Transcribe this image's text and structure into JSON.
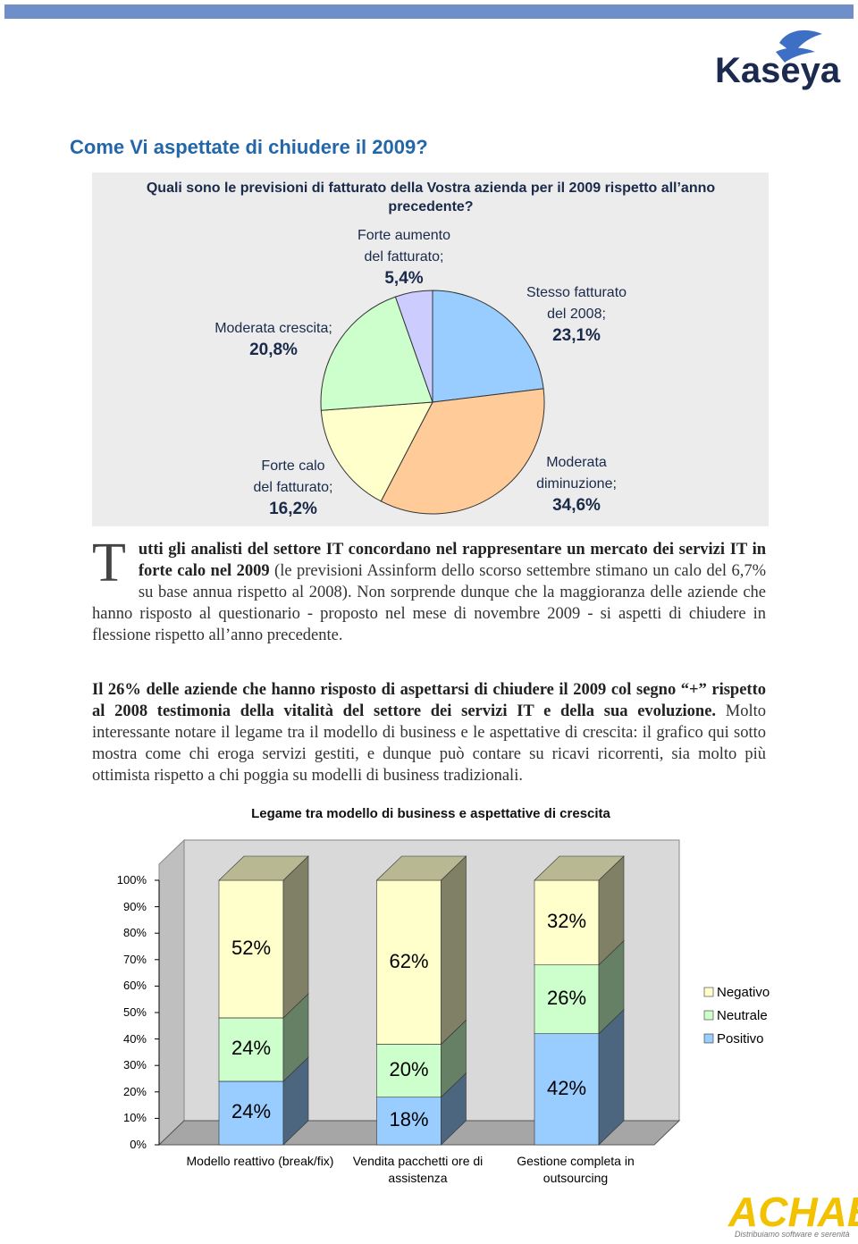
{
  "header": {
    "logo": "Kaseya"
  },
  "heading": "Come Vi aspettate di chiudere il 2009?",
  "chart_data": [
    {
      "type": "pie",
      "title": "Quali sono le previsioni di fatturato della Vostra azienda per il 2009 rispetto all’anno precedente?",
      "categories": [
        "Stesso fatturato del 2008;",
        "Moderata diminuzione;",
        "Forte calo del fatturato;",
        "Moderata crescita;",
        "Forte aumento del fatturato;"
      ],
      "values": [
        23.1,
        34.6,
        16.2,
        20.8,
        5.4
      ],
      "value_labels": [
        "23,1%",
        "34,6%",
        "16,2%",
        "20,8%",
        "5,4%"
      ],
      "colors": [
        "#99ccff",
        "#ffcc99",
        "#ffffcc",
        "#ccffcc",
        "#ccccff"
      ]
    },
    {
      "type": "bar",
      "stacked": true,
      "title": "Legame tra modello di business e aspettative di crescita",
      "categories": [
        "Modello reattivo (break/fix)",
        "Vendita pacchetti ore di assistenza",
        "Gestione completa in outsourcing"
      ],
      "series": [
        {
          "name": "Positivo",
          "color": "#99ccff",
          "values": [
            24,
            18,
            42
          ],
          "value_labels": [
            "24%",
            "18%",
            "42%"
          ]
        },
        {
          "name": "Neutrale",
          "color": "#ccffcc",
          "values": [
            24,
            20,
            26
          ],
          "value_labels": [
            "24%",
            "20%",
            "26%"
          ]
        },
        {
          "name": "Negativo",
          "color": "#ffffcc",
          "values": [
            52,
            62,
            32
          ],
          "value_labels": [
            "52%",
            "62%",
            "32%"
          ]
        }
      ],
      "ylim": [
        0,
        100
      ],
      "yticks": [
        {
          "value": 0,
          "label": "0%"
        },
        {
          "value": 10,
          "label": "10%"
        },
        {
          "value": 20,
          "label": "20%"
        },
        {
          "value": 30,
          "label": "30%"
        },
        {
          "value": 40,
          "label": "40%"
        },
        {
          "value": 50,
          "label": "50%"
        },
        {
          "value": 60,
          "label": "60%"
        },
        {
          "value": 70,
          "label": "70%"
        },
        {
          "value": 80,
          "label": "80%"
        },
        {
          "value": 90,
          "label": "90%"
        },
        {
          "value": 100,
          "label": "100%"
        }
      ],
      "legend": "right"
    }
  ],
  "paragraphs": [
    {
      "drop_cap": "T",
      "bold": "utti gli analisti del settore IT concordano nel rappresentare un mercato dei servizi IT in forte calo nel 2009",
      "text": "(le previsioni Assinform dello scorso settembre stimano un calo del 6,7% su base annua rispetto al 2008). Non sorprende dunque che la maggioranza delle aziende che hanno risposto al questionario - proposto nel mese di novembre 2009 - si aspetti di chiudere in flessione rispetto all’anno precedente."
    },
    {
      "bold": "Il 26% delle aziende che hanno risposto di aspettarsi di chiudere il 2009 col segno “+” rispetto al 2008 testimonia della vitalità del settore dei servizi IT e della sua evoluzione.",
      "text": "Molto interessante notare il legame tra il modello di business e le aspettative di crescita: il grafico qui sotto mostra come chi eroga servizi gestiti, e dunque può contare su ricavi ricorrenti, sia molto più ottimista rispetto a chi poggia su modelli di business tradizionali."
    }
  ],
  "footer": {
    "logo": "ACHAB",
    "tagline": "Distribuiamo software e serenità"
  }
}
